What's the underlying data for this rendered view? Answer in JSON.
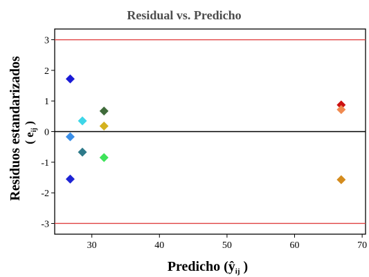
{
  "chart_data": {
    "type": "scatter",
    "title": "Residual vs. Predicho",
    "xlabel": "Predicho (ŷ",
    "xlabel_sub": "ij",
    "xlabel_close": " )",
    "ylabel": "Residuos estandarizados",
    "ylabel2": "( e",
    "ylabel2_sub": "ij",
    "ylabel2_close": " )",
    "xlim": [
      24.5,
      70.5
    ],
    "ylim": [
      -3.35,
      3.35
    ],
    "xticks": [
      30,
      40,
      50,
      60,
      70
    ],
    "yticks": [
      3,
      2,
      1,
      0,
      -1,
      -2,
      -3
    ],
    "hlines": [
      {
        "y": 3,
        "color": "#e04040"
      },
      {
        "y": 0,
        "color": "#000000"
      },
      {
        "y": -3,
        "color": "#e04040"
      }
    ],
    "marker": "diamond",
    "points": [
      {
        "x": 26.8,
        "y": 1.72,
        "color": "#1a1ad6"
      },
      {
        "x": 26.8,
        "y": -0.17,
        "color": "#3b8fe8"
      },
      {
        "x": 26.8,
        "y": -1.55,
        "color": "#1e24d4"
      },
      {
        "x": 28.6,
        "y": 0.35,
        "color": "#3ed6e8"
      },
      {
        "x": 28.6,
        "y": -0.67,
        "color": "#2e7a8a"
      },
      {
        "x": 31.8,
        "y": 0.67,
        "color": "#3f6b3a"
      },
      {
        "x": 31.8,
        "y": 0.18,
        "color": "#d4b21e"
      },
      {
        "x": 31.8,
        "y": -0.85,
        "color": "#3ee35a"
      },
      {
        "x": 66.9,
        "y": 0.87,
        "color": "#cc1010"
      },
      {
        "x": 66.9,
        "y": 0.72,
        "color": "#f08a50"
      },
      {
        "x": 66.9,
        "y": -1.57,
        "color": "#d48c1e"
      }
    ]
  }
}
